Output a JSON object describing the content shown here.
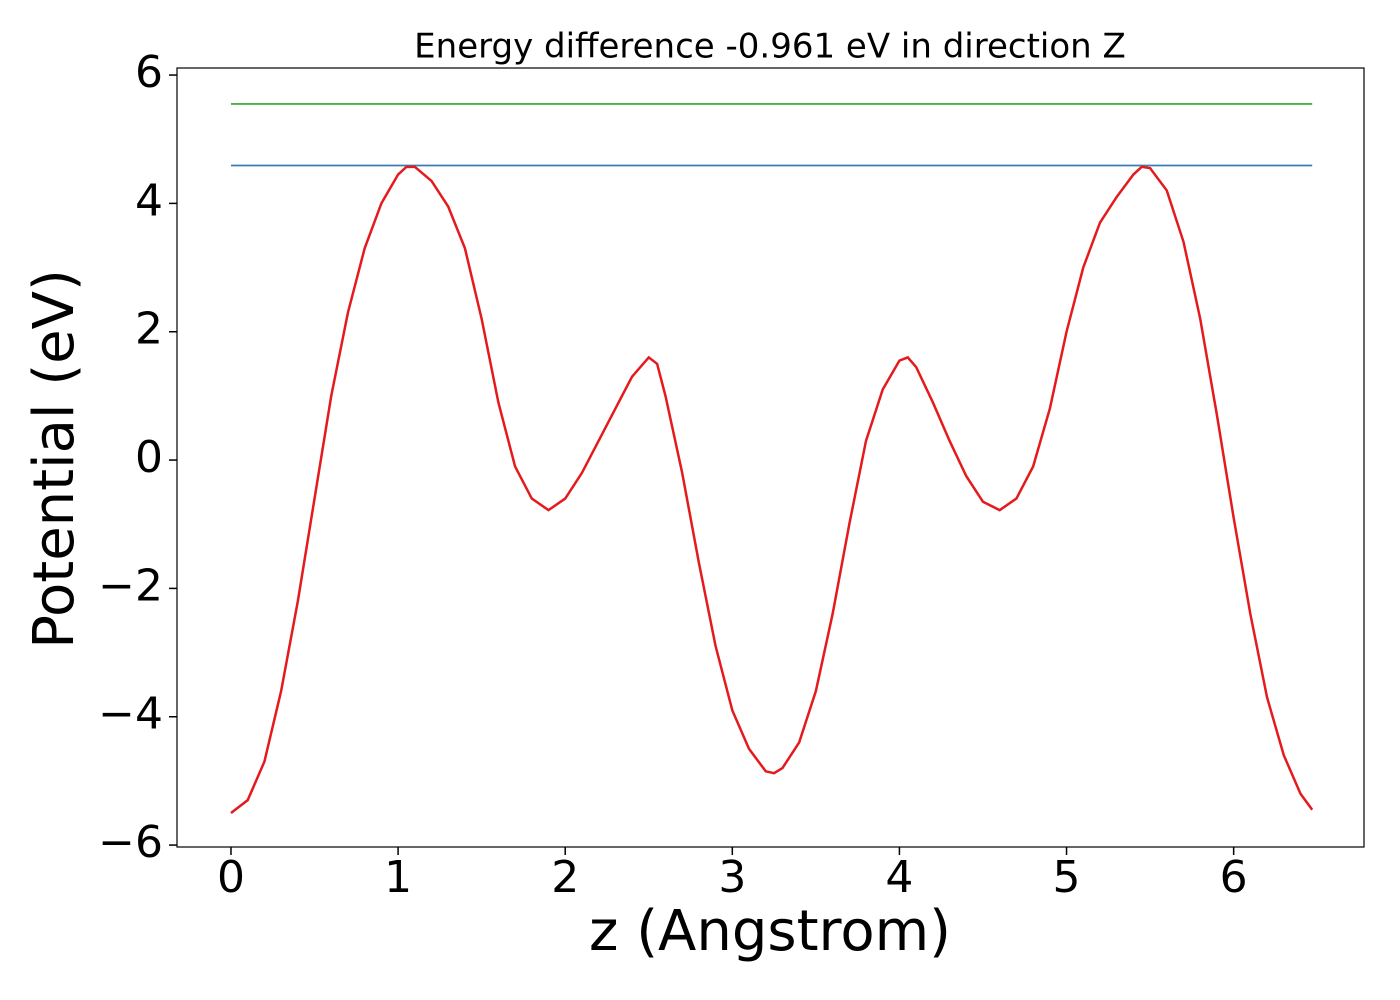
{
  "chart_data": {
    "type": "line",
    "title": "Energy difference -0.961 eV in direction Z",
    "x_label": "z (Angstrom)",
    "y_label": "Potential (eV)",
    "xlim": [
      -0.323,
      6.78
    ],
    "ylim": [
      -6.03,
      6.11
    ],
    "xticks": [
      0,
      1,
      2,
      3,
      4,
      5,
      6
    ],
    "yticks": [
      {
        "value": -6,
        "label": "−6"
      },
      {
        "value": -4,
        "label": "−4"
      },
      {
        "value": -2,
        "label": "−2"
      },
      0,
      2,
      4,
      6
    ],
    "series": [
      {
        "color": "#4daf4a",
        "x": [
          0,
          6.47
        ],
        "values": [
          5.55,
          5.55
        ]
      },
      {
        "color": "#377eb8",
        "x": [
          0,
          6.47
        ],
        "values": [
          4.59,
          4.59
        ]
      },
      {
        "color": "#e41a1c",
        "x": [
          0,
          0.1,
          0.2,
          0.3,
          0.4,
          0.5,
          0.6,
          0.7,
          0.8,
          0.9,
          1.0,
          1.05,
          1.1,
          1.2,
          1.3,
          1.4,
          1.5,
          1.6,
          1.7,
          1.8,
          1.9,
          2.0,
          2.1,
          2.2,
          2.3,
          2.4,
          2.5,
          2.55,
          2.6,
          2.7,
          2.8,
          2.9,
          3.0,
          3.1,
          3.2,
          3.25,
          3.3,
          3.4,
          3.5,
          3.6,
          3.7,
          3.8,
          3.9,
          4.0,
          4.05,
          4.1,
          4.2,
          4.3,
          4.4,
          4.5,
          4.6,
          4.7,
          4.8,
          4.9,
          5.0,
          5.1,
          5.2,
          5.3,
          5.4,
          5.45,
          5.5,
          5.6,
          5.7,
          5.8,
          5.9,
          6.0,
          6.1,
          6.2,
          6.3,
          6.4,
          6.47
        ],
        "values": [
          -5.5,
          -5.3,
          -4.7,
          -3.6,
          -2.2,
          -0.6,
          1.0,
          2.3,
          3.3,
          4.0,
          4.45,
          4.57,
          4.57,
          4.35,
          3.95,
          3.3,
          2.2,
          0.9,
          -0.1,
          -0.6,
          -0.78,
          -0.6,
          -0.2,
          0.3,
          0.8,
          1.3,
          1.6,
          1.5,
          1.0,
          -0.2,
          -1.6,
          -2.9,
          -3.9,
          -4.5,
          -4.85,
          -4.88,
          -4.8,
          -4.4,
          -3.6,
          -2.4,
          -1.0,
          0.3,
          1.1,
          1.55,
          1.6,
          1.45,
          0.9,
          0.3,
          -0.25,
          -0.65,
          -0.78,
          -0.6,
          -0.1,
          0.8,
          2.0,
          3.0,
          3.7,
          4.1,
          4.45,
          4.57,
          4.55,
          4.2,
          3.4,
          2.2,
          0.7,
          -0.9,
          -2.4,
          -3.7,
          -4.6,
          -5.2,
          -5.45
        ]
      }
    ]
  }
}
